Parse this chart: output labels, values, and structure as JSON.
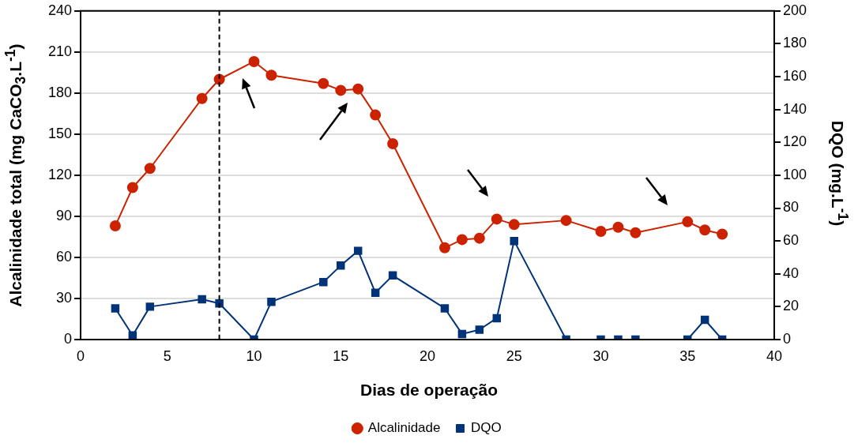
{
  "chart_data": {
    "type": "line",
    "xlabel": "Dias de operação",
    "ylabel": "Alcalinidade total (mg CaCO$_{3}$.L$^{-1}$)",
    "y2label": "DQO (mg.L$^{-1}$)",
    "xlim": [
      0,
      40
    ],
    "xticks": [
      0,
      5,
      10,
      15,
      20,
      25,
      30,
      35,
      40
    ],
    "ylim": [
      0,
      240
    ],
    "yticks": [
      0,
      30,
      60,
      90,
      120,
      150,
      180,
      210,
      240
    ],
    "y2lim": [
      0,
      200
    ],
    "y2ticks": [
      0,
      20,
      40,
      60,
      80,
      100,
      120,
      140,
      160,
      180,
      200
    ],
    "grid": "y",
    "legend": "bottom",
    "line_style": "solid",
    "ref_lines": [
      {
        "axis": "x",
        "value": 8,
        "color": "#000000",
        "line_style": "dashed"
      }
    ],
    "series": [
      {
        "name": "Alcalinidade",
        "color": "#cc2200",
        "marker": "circle",
        "x": [
          2,
          3,
          4,
          7,
          8,
          10,
          11,
          14,
          15,
          16,
          17,
          18,
          21,
          22,
          23,
          24,
          25,
          28,
          30,
          31,
          32,
          35,
          36,
          37
        ],
        "values": [
          83,
          111,
          125,
          176,
          190,
          203,
          193,
          187,
          182,
          183,
          164,
          143,
          67,
          73,
          74,
          88,
          84,
          87,
          79,
          82,
          78,
          86,
          80,
          77
        ]
      },
      {
        "name": "DQO",
        "color": "#003377",
        "marker": "square",
        "axis": "y2",
        "x": [
          2,
          3,
          4,
          7,
          8,
          10,
          11,
          14,
          15,
          16,
          17,
          18,
          21,
          22,
          23,
          24,
          25,
          28,
          30,
          31,
          32,
          35,
          36,
          37
        ],
        "values": [
          19,
          2.5,
          20,
          24.5,
          22,
          0,
          23,
          35,
          45,
          54,
          28.5,
          39,
          19,
          3.4,
          6,
          13,
          60,
          0,
          0,
          0,
          0,
          0,
          12,
          0
        ]
      }
    ]
  }
}
